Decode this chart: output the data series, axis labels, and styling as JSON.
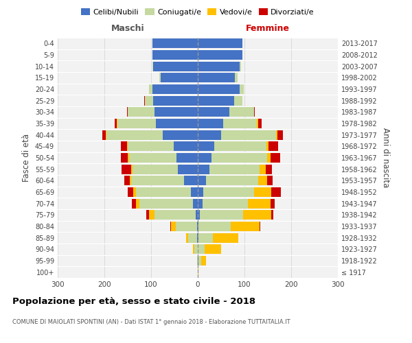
{
  "age_groups": [
    "100+",
    "95-99",
    "90-94",
    "85-89",
    "80-84",
    "75-79",
    "70-74",
    "65-69",
    "60-64",
    "55-59",
    "50-54",
    "45-49",
    "40-44",
    "35-39",
    "30-34",
    "25-29",
    "20-24",
    "15-19",
    "10-14",
    "5-9",
    "0-4"
  ],
  "birth_years": [
    "≤ 1917",
    "1918-1922",
    "1923-1927",
    "1928-1932",
    "1933-1937",
    "1938-1942",
    "1943-1947",
    "1948-1952",
    "1953-1957",
    "1958-1962",
    "1963-1967",
    "1968-1972",
    "1973-1977",
    "1978-1982",
    "1983-1987",
    "1988-1992",
    "1993-1997",
    "1998-2002",
    "2003-2007",
    "2008-2012",
    "2013-2017"
  ],
  "colors": {
    "celibe": "#4472c4",
    "coniugato": "#c5d9a0",
    "vedovo": "#ffc000",
    "divorziato": "#cc0000",
    "background": "#f2f2f2",
    "grid": "#d0d0d0",
    "dashed_line": "#999999"
  },
  "maschi": {
    "celibe": [
      0,
      0,
      0,
      2,
      2,
      5,
      10,
      15,
      30,
      42,
      45,
      52,
      75,
      90,
      92,
      95,
      97,
      80,
      95,
      97,
      97
    ],
    "coniugato": [
      0,
      2,
      8,
      18,
      45,
      88,
      115,
      118,
      112,
      98,
      102,
      98,
      120,
      82,
      58,
      18,
      8,
      3,
      2,
      0,
      0
    ],
    "vedovo": [
      0,
      0,
      2,
      5,
      10,
      12,
      8,
      5,
      4,
      3,
      3,
      2,
      2,
      1,
      0,
      0,
      0,
      0,
      0,
      0,
      0
    ],
    "divorziato": [
      0,
      0,
      0,
      0,
      2,
      5,
      8,
      12,
      12,
      20,
      15,
      12,
      8,
      5,
      2,
      2,
      0,
      0,
      0,
      0,
      0
    ]
  },
  "femmine": {
    "nubile": [
      0,
      2,
      0,
      2,
      2,
      5,
      10,
      12,
      18,
      25,
      30,
      35,
      50,
      55,
      68,
      78,
      90,
      80,
      90,
      95,
      95
    ],
    "coniugata": [
      0,
      5,
      15,
      30,
      68,
      92,
      98,
      108,
      112,
      108,
      118,
      112,
      118,
      72,
      52,
      18,
      8,
      5,
      2,
      0,
      0
    ],
    "vedova": [
      2,
      10,
      35,
      55,
      62,
      60,
      48,
      38,
      18,
      12,
      8,
      5,
      3,
      2,
      0,
      0,
      0,
      0,
      0,
      0,
      0
    ],
    "divorziata": [
      0,
      0,
      0,
      0,
      2,
      5,
      8,
      20,
      12,
      14,
      20,
      20,
      12,
      8,
      2,
      0,
      0,
      0,
      0,
      0,
      0
    ]
  },
  "xlim": 300,
  "title": "Popolazione per età, sesso e stato civile - 2018",
  "subtitle": "COMUNE DI MAIOLATI SPONTINI (AN) - Dati ISTAT 1° gennaio 2018 - Elaborazione TUTTAITALIA.IT",
  "ylabel_left": "Fasce di età",
  "ylabel_right": "Anni di nascita",
  "maschi_label": "Maschi",
  "femmine_label": "Femmine",
  "legend_labels": [
    "Celibi/Nubili",
    "Coniugati/e",
    "Vedovi/e",
    "Divorziati/e"
  ]
}
